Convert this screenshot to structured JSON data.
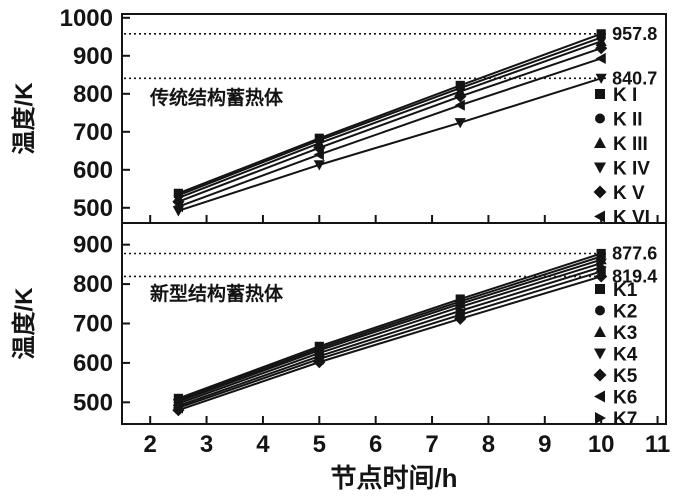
{
  "figure": {
    "xlabel": "节点时间/h",
    "x_ticks": [
      2,
      3,
      4,
      5,
      6,
      7,
      8,
      9,
      10,
      11
    ],
    "x_range": [
      1.5,
      11.15
    ],
    "line_color": "#141414",
    "background": "#ffffff"
  },
  "chart_data": [
    {
      "type": "line",
      "panel": "top",
      "inner_title": "传统结构蓄热体",
      "ylabel": "温度/K",
      "ylim": [
        460,
        1010
      ],
      "y_ticks": [
        500,
        600,
        700,
        800,
        900,
        1000
      ],
      "x": [
        2.5,
        5,
        7.5,
        10
      ],
      "series": [
        {
          "name": "K I",
          "marker": "square",
          "values": [
            538,
            683,
            822,
            957.8
          ]
        },
        {
          "name": "K II",
          "marker": "circle",
          "values": [
            533,
            678,
            815,
            948
          ]
        },
        {
          "name": "K III",
          "marker": "triangle-up",
          "values": [
            526,
            670,
            806,
            938
          ]
        },
        {
          "name": "K IV",
          "marker": "triangle-down",
          "values": [
            492,
            613,
            724,
            840.7
          ]
        },
        {
          "name": "K V",
          "marker": "diamond",
          "values": [
            516,
            658,
            793,
            920
          ]
        },
        {
          "name": "K VI",
          "marker": "triangle-left",
          "values": [
            503,
            640,
            770,
            893
          ]
        }
      ],
      "annotations": [
        {
          "y": 957.8,
          "label": "957.8"
        },
        {
          "y": 840.7,
          "label": "840.7"
        }
      ],
      "legend_position": "right-inside",
      "grid": false
    },
    {
      "type": "line",
      "panel": "bottom",
      "inner_title": "新型结构蓄热体",
      "ylabel": "温度/K",
      "ylim": [
        445,
        955
      ],
      "y_ticks": [
        500,
        600,
        700,
        800,
        900
      ],
      "x": [
        2.5,
        5,
        7.5,
        10
      ],
      "series": [
        {
          "name": "K1",
          "marker": "square",
          "values": [
            510,
            642,
            762,
            877.6
          ]
        },
        {
          "name": "K2",
          "marker": "circle",
          "values": [
            506,
            637,
            756,
            870
          ]
        },
        {
          "name": "K3",
          "marker": "triangle-up",
          "values": [
            502,
            632,
            750,
            862
          ]
        },
        {
          "name": "K4",
          "marker": "triangle-down",
          "values": [
            497,
            625,
            742,
            853
          ]
        },
        {
          "name": "K5",
          "marker": "diamond",
          "values": [
            480,
            602,
            712,
            819.4
          ]
        },
        {
          "name": "K6",
          "marker": "triangle-left",
          "values": [
            486,
            610,
            722,
            832
          ]
        },
        {
          "name": "K7",
          "marker": "triangle-right",
          "values": [
            491,
            617,
            732,
            843
          ]
        }
      ],
      "annotations": [
        {
          "y": 877.6,
          "label": "877.6"
        },
        {
          "y": 819.4,
          "label": "819.4"
        }
      ],
      "legend_position": "right-inside",
      "grid": false
    }
  ]
}
